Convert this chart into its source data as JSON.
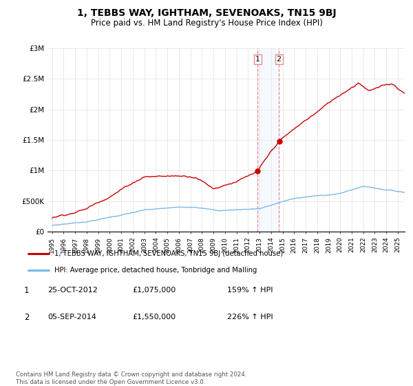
{
  "title": "1, TEBBS WAY, IGHTHAM, SEVENOAKS, TN15 9BJ",
  "subtitle": "Price paid vs. HM Land Registry's House Price Index (HPI)",
  "legend_line1": "1, TEBBS WAY, IGHTHAM, SEVENOAKS, TN15 9BJ (detached house)",
  "legend_line2": "HPI: Average price, detached house, Tonbridge and Malling",
  "transaction1_label": "1",
  "transaction1_date": "25-OCT-2012",
  "transaction1_price": "£1,075,000",
  "transaction1_hpi": "159% ↑ HPI",
  "transaction2_label": "2",
  "transaction2_date": "05-SEP-2014",
  "transaction2_price": "£1,550,000",
  "transaction2_hpi": "226% ↑ HPI",
  "footer": "Contains HM Land Registry data © Crown copyright and database right 2024.\nThis data is licensed under the Open Government Licence v3.0.",
  "hpi_color": "#7ab8e8",
  "price_color": "#cc0000",
  "marker_color": "#cc0000",
  "vline_color": "#ee8888",
  "shade_color": "#ddeeff",
  "ylim": [
    0,
    3000000
  ],
  "yticks": [
    0,
    500000,
    1000000,
    1500000,
    2000000,
    2500000,
    3000000
  ],
  "ytick_labels": [
    "£0",
    "£500K",
    "£1M",
    "£1.5M",
    "£2M",
    "£2.5M",
    "£3M"
  ],
  "transaction1_x": 2012.82,
  "transaction2_x": 2014.68,
  "xstart": 1995,
  "xend": 2025
}
